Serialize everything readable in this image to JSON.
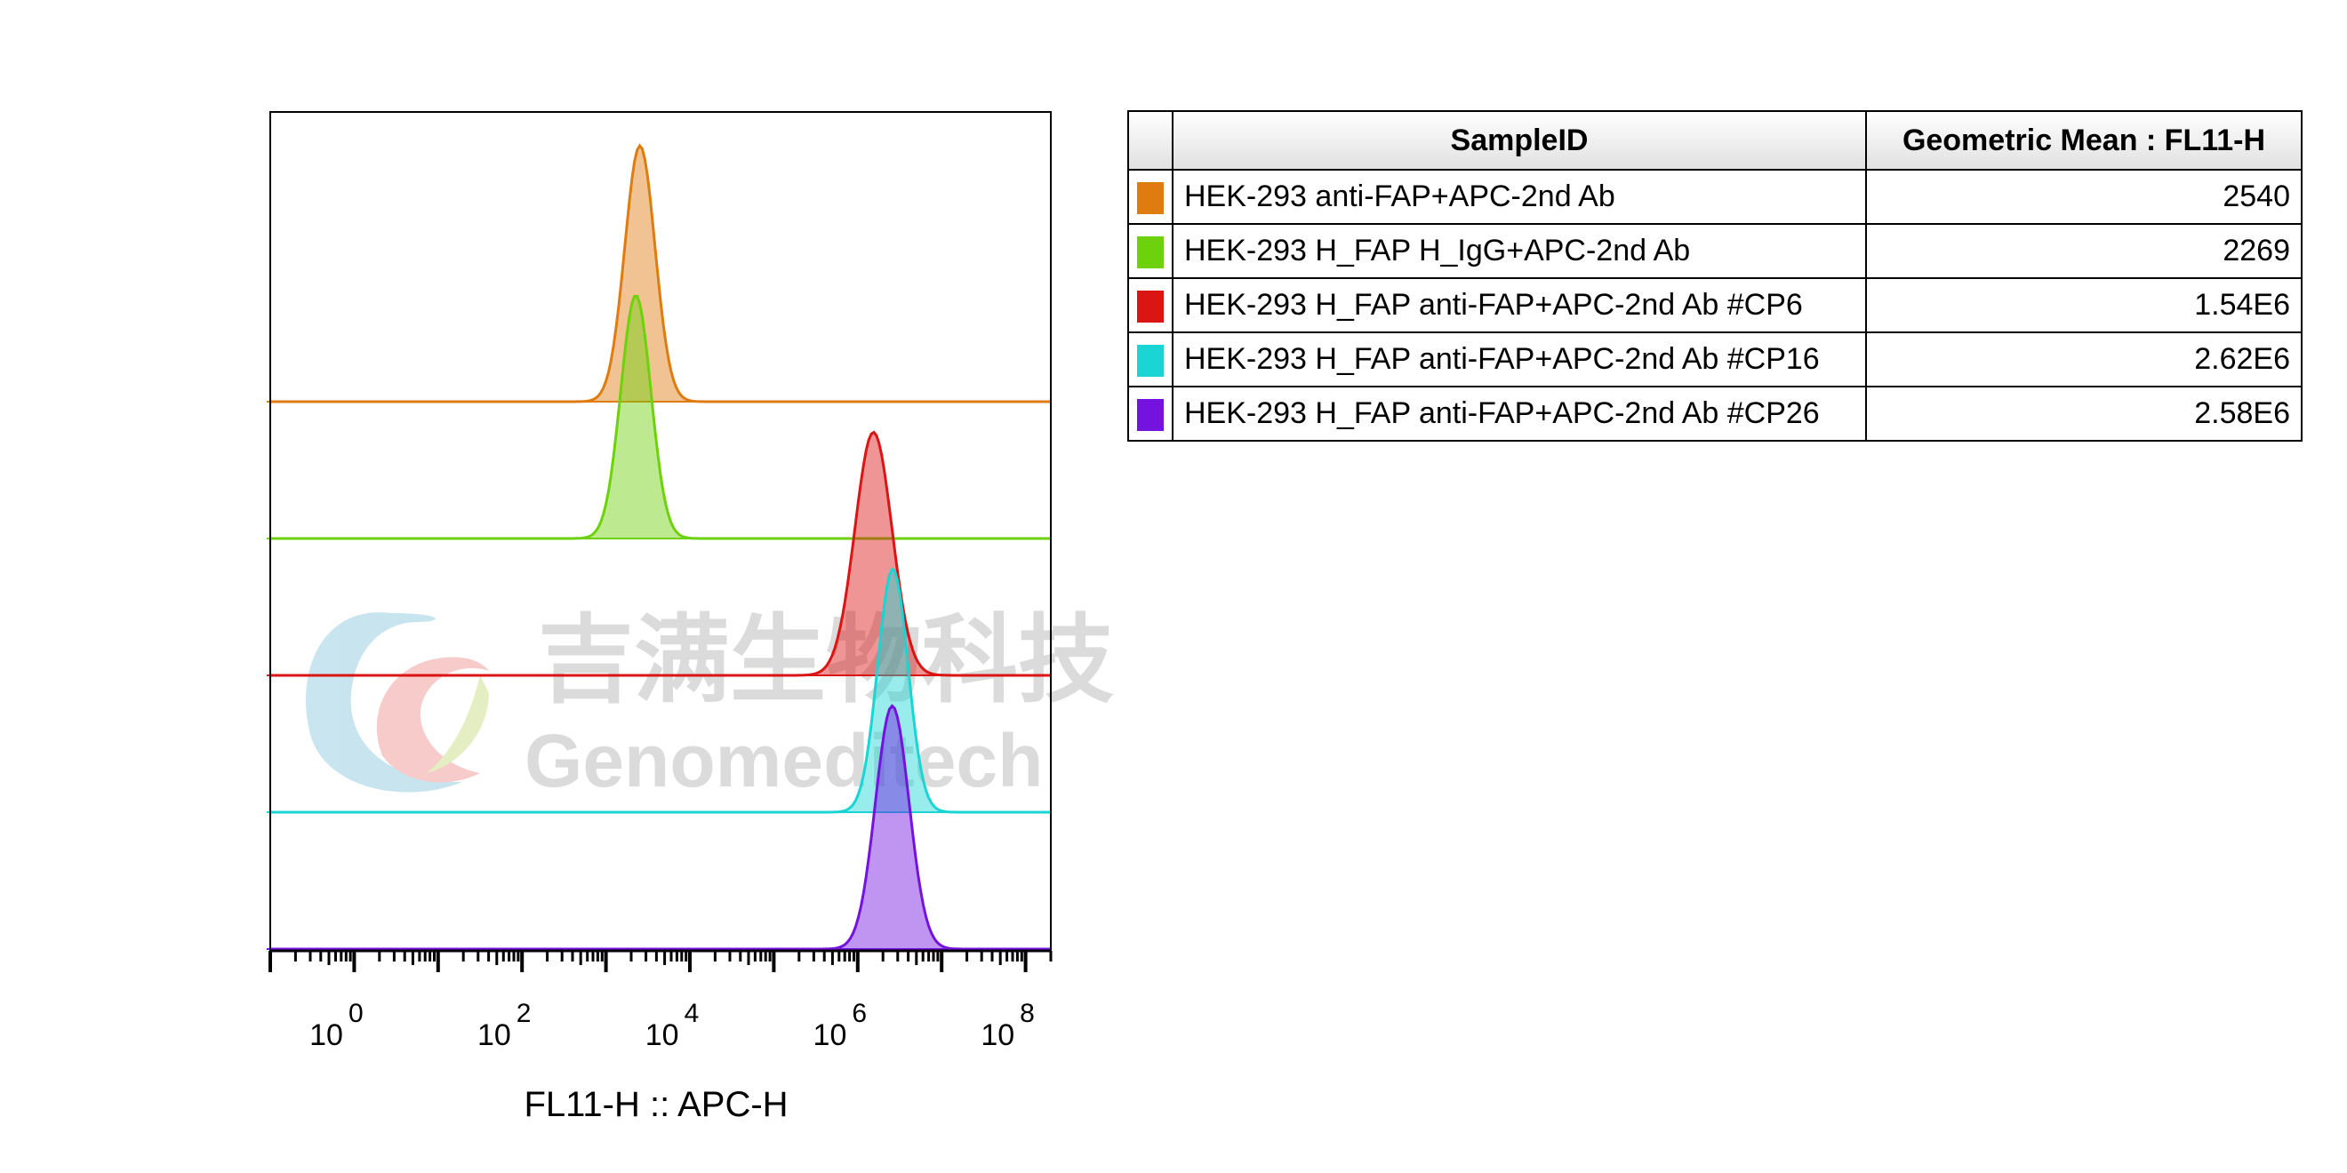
{
  "watermark": {
    "chinese": "吉满生物科技",
    "english": "Genomeditech"
  },
  "chart_data": {
    "type": "area",
    "subtype": "flow-cytometry-offset-histogram",
    "xlabel": "FL11-H :: APC-H",
    "x_scale": "log",
    "xlim": [
      0.1,
      200000000
    ],
    "x_tick_labels": [
      {
        "value": 1,
        "base": "10",
        "exp": "0"
      },
      {
        "value": 100,
        "base": "10",
        "exp": "2"
      },
      {
        "value": 10000,
        "base": "10",
        "exp": "4"
      },
      {
        "value": 1000000,
        "base": "10",
        "exp": "6"
      },
      {
        "value": 100000000,
        "base": "10",
        "exp": "8"
      }
    ],
    "grid": false,
    "legend_placement": "right table",
    "series": [
      {
        "name": "HEK-293 anti-FAP+APC-2nd Ab",
        "color": "#e07b10",
        "peak_x": 2540,
        "spread_decades": 0.18,
        "relative_height": 1.0
      },
      {
        "name": "HEK-293 H_FAP H_IgG+APC-2nd Ab",
        "color": "#6dd10b",
        "peak_x": 2269,
        "spread_decades": 0.18,
        "relative_height": 0.95
      },
      {
        "name": "HEK-293 H_FAP anti-FAP+APC-2nd Ab #CP6",
        "color": "#db1414",
        "peak_x": 1540000,
        "spread_decades": 0.22,
        "relative_height": 0.95
      },
      {
        "name": "HEK-293 H_FAP anti-FAP+APC-2nd Ab #CP16",
        "color": "#1bd4d4",
        "peak_x": 2620000,
        "spread_decades": 0.18,
        "relative_height": 0.95
      },
      {
        "name": "HEK-293 H_FAP anti-FAP+APC-2nd Ab #CP26",
        "color": "#7413e0",
        "peak_x": 2580000,
        "spread_decades": 0.2,
        "relative_height": 0.95
      }
    ]
  },
  "table": {
    "headers": {
      "sample": "SampleID",
      "mean": "Geometric Mean : FL11-H"
    },
    "rows": [
      {
        "color": "#e07b10",
        "sample": "HEK-293 anti-FAP+APC-2nd Ab",
        "mean": "2540"
      },
      {
        "color": "#6dd10b",
        "sample": "HEK-293 H_FAP H_IgG+APC-2nd Ab",
        "mean": "2269"
      },
      {
        "color": "#db1414",
        "sample": "HEK-293 H_FAP anti-FAP+APC-2nd Ab #CP6",
        "mean": "1.54E6"
      },
      {
        "color": "#1bd4d4",
        "sample": "HEK-293 H_FAP anti-FAP+APC-2nd Ab #CP16",
        "mean": "2.62E6"
      },
      {
        "color": "#7413e0",
        "sample": "HEK-293 H_FAP anti-FAP+APC-2nd Ab #CP26",
        "mean": "2.58E6"
      }
    ]
  }
}
